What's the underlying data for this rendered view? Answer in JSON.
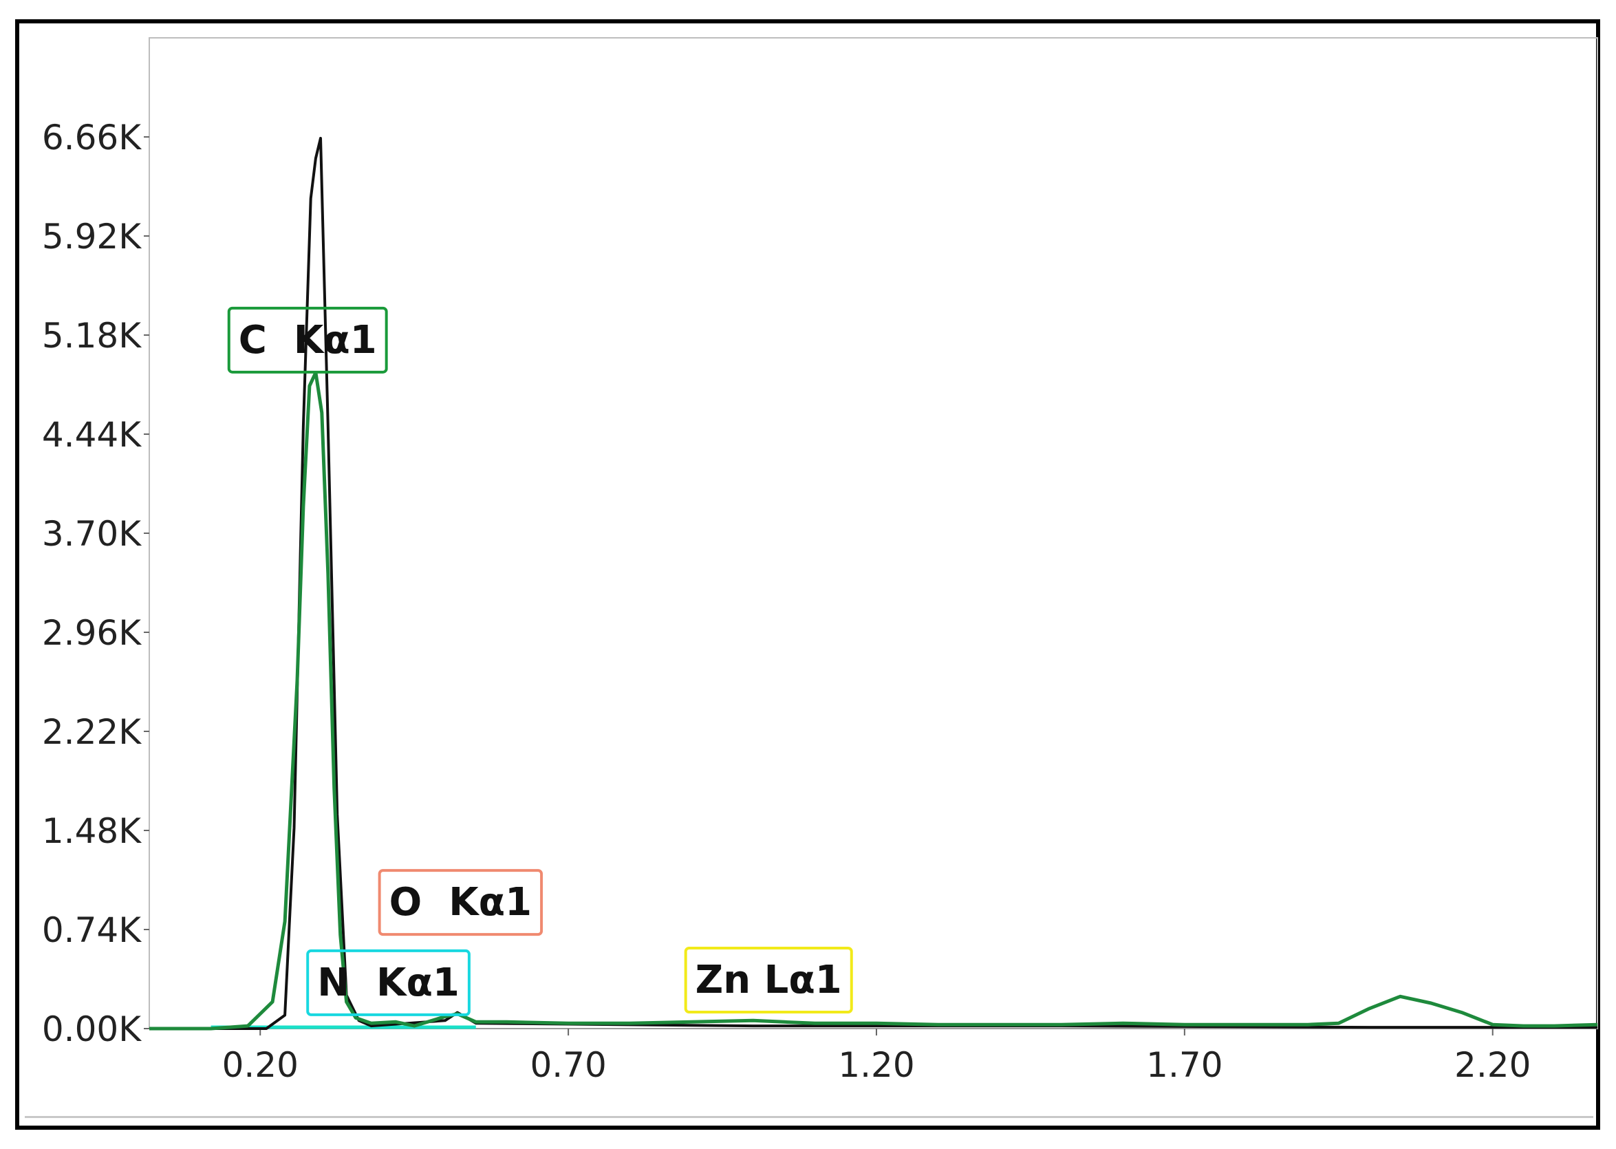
{
  "chart_data": {
    "type": "line",
    "title": "",
    "xlabel": "",
    "ylabel": "",
    "xlim": [
      0.02,
      2.37
    ],
    "ylim": [
      0,
      7400
    ],
    "x_ticks": [
      0.2,
      0.7,
      1.2,
      1.7,
      2.2
    ],
    "x_tick_labels": [
      "0.20",
      "0.70",
      "1.20",
      "1.70",
      "2.20"
    ],
    "y_ticks": [
      0,
      740,
      1480,
      2220,
      2960,
      3700,
      4440,
      5180,
      5920,
      6660
    ],
    "y_tick_labels": [
      "0.00K",
      "0.74K",
      "1.48K",
      "2.22K",
      "2.96K",
      "3.70K",
      "4.44K",
      "5.18K",
      "5.92K",
      "6.66K"
    ],
    "grid": false,
    "annotations": [
      {
        "text": "C  Kα1",
        "x": 0.277,
        "y": 5150,
        "color": "#1a9a3a"
      },
      {
        "text": "O  Kα1",
        "x": 0.525,
        "y": 950,
        "color": "#f08a70"
      },
      {
        "text": "N  Kα1",
        "x": 0.408,
        "y": 350,
        "color": "#18d8e0"
      },
      {
        "text": "Zn Lα1",
        "x": 1.025,
        "y": 370,
        "color": "#f2ea1a"
      }
    ],
    "series": [
      {
        "color": "#111111",
        "x": [
          0.02,
          0.21,
          0.24,
          0.255,
          0.27,
          0.282,
          0.29,
          0.298,
          0.31,
          0.325,
          0.34,
          0.36,
          0.38,
          0.5,
          0.52,
          0.55,
          1.0,
          1.5,
          2.0,
          2.37
        ],
        "y": [
          0,
          0,
          100,
          1500,
          4500,
          6200,
          6500,
          6650,
          4500,
          1600,
          250,
          60,
          20,
          60,
          120,
          40,
          20,
          20,
          10,
          10
        ]
      },
      {
        "color": "#1e8a3c",
        "x": [
          0.02,
          0.12,
          0.18,
          0.22,
          0.24,
          0.26,
          0.27,
          0.28,
          0.29,
          0.3,
          0.31,
          0.32,
          0.33,
          0.34,
          0.355,
          0.38,
          0.42,
          0.45,
          0.5,
          0.52,
          0.55,
          0.6,
          0.7,
          0.8,
          0.9,
          1.0,
          1.05,
          1.1,
          1.2,
          1.3,
          1.4,
          1.5,
          1.6,
          1.7,
          1.8,
          1.9,
          1.95,
          2.0,
          2.05,
          2.1,
          2.15,
          2.2,
          2.25,
          2.3,
          2.37
        ],
        "y": [
          0,
          0,
          20,
          200,
          800,
          2600,
          3900,
          4800,
          4900,
          4600,
          3400,
          1800,
          700,
          200,
          80,
          40,
          50,
          20,
          90,
          110,
          50,
          50,
          40,
          40,
          50,
          60,
          50,
          40,
          40,
          30,
          30,
          30,
          40,
          30,
          30,
          30,
          40,
          150,
          240,
          190,
          120,
          30,
          20,
          20,
          30
        ]
      }
    ]
  }
}
